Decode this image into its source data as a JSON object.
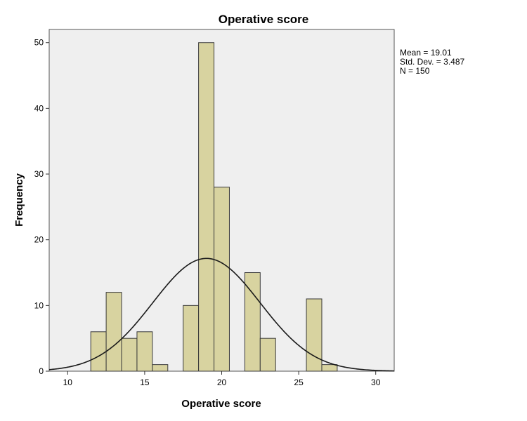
{
  "chart_data": {
    "type": "bar",
    "title": "Operative score",
    "xlabel": "Operative score",
    "ylabel": "Frequency",
    "xlim": [
      8.8,
      31.2
    ],
    "ylim": [
      0,
      52
    ],
    "x_ticks": [
      10,
      15,
      20,
      25,
      30
    ],
    "y_ticks": [
      0,
      10,
      20,
      30,
      40,
      50
    ],
    "bin_width": 1,
    "bins": [
      {
        "x": 12,
        "count": 6
      },
      {
        "x": 13,
        "count": 12
      },
      {
        "x": 14,
        "count": 5
      },
      {
        "x": 15,
        "count": 6
      },
      {
        "x": 16,
        "count": 1
      },
      {
        "x": 17,
        "count": 0
      },
      {
        "x": 18,
        "count": 10
      },
      {
        "x": 19,
        "count": 50
      },
      {
        "x": 20,
        "count": 28
      },
      {
        "x": 21,
        "count": 0
      },
      {
        "x": 22,
        "count": 15
      },
      {
        "x": 23,
        "count": 5
      },
      {
        "x": 24,
        "count": 0
      },
      {
        "x": 25,
        "count": 0
      },
      {
        "x": 26,
        "count": 11
      },
      {
        "x": 27,
        "count": 1
      }
    ],
    "normal_curve": {
      "mean": 19.01,
      "std_dev": 3.487,
      "n": 150
    },
    "stats_lines": [
      "Mean = 19.01",
      "Std. Dev. = 3.487",
      "N = 150"
    ],
    "grid": false,
    "colors": {
      "bar_fill": "#d8d3a0",
      "bar_stroke": "#3a3a3a",
      "plot_background": "#efefef",
      "curve": "#1a1a1a"
    }
  }
}
